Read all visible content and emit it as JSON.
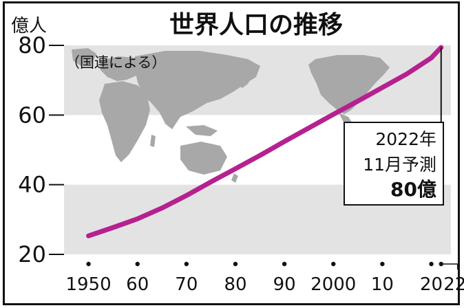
{
  "chart_data": {
    "type": "line",
    "title": "世界人口の推移",
    "unit_label": "億人",
    "source_note": "（国連による）",
    "xlim": [
      1945,
      2024
    ],
    "ylim": [
      20,
      80
    ],
    "y_ticks": [
      20,
      40,
      60,
      80
    ],
    "y_tick_labels": [
      "20",
      "40",
      "60",
      "80"
    ],
    "x_ticks": [
      1950,
      1960,
      1970,
      1980,
      1990,
      2000,
      2010,
      2020,
      2022
    ],
    "x_tick_labels": [
      "1950",
      "60",
      "70",
      "80",
      "90",
      "2000",
      "10",
      "20",
      "22"
    ],
    "grid": "alternating horizontal bands",
    "series": [
      {
        "color": "#b5218f",
        "points": [
          [
            1950,
            25.3
          ],
          [
            1955,
            27.7
          ],
          [
            1960,
            30.2
          ],
          [
            1965,
            33.3
          ],
          [
            1970,
            36.9
          ],
          [
            1975,
            40.8
          ],
          [
            1980,
            44.6
          ],
          [
            1985,
            48.4
          ],
          [
            1990,
            52.4
          ],
          [
            1995,
            56.3
          ],
          [
            2000,
            60.2
          ],
          [
            2005,
            64.0
          ],
          [
            2010,
            67.9
          ],
          [
            2015,
            71.8
          ],
          [
            2020,
            76.4
          ],
          [
            2022,
            79.4
          ]
        ]
      }
    ],
    "annotation": {
      "line1": "2022年",
      "line2": "11月予測",
      "line3": "80億",
      "year": 2022
    },
    "colors": {
      "band": "#e3e3e3",
      "map": "#a8a8a8",
      "line": "#b5218f",
      "text": "#111111"
    }
  }
}
